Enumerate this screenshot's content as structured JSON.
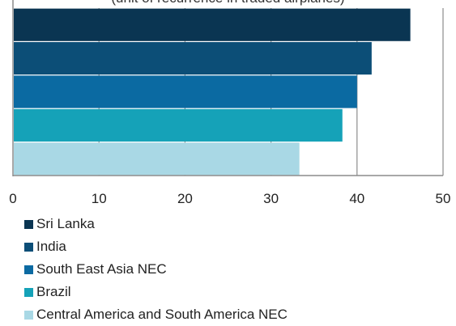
{
  "chart_data": {
    "type": "bar",
    "orientation": "horizontal",
    "title": "",
    "subtitle": "(unit of recurrence in traded airplanes)",
    "xlabel": "",
    "ylabel": "",
    "xlim": [
      0,
      50
    ],
    "xticks": [
      "0",
      "10",
      "20",
      "30",
      "40",
      "50"
    ],
    "grid": true,
    "legend_position": "bottom-left",
    "series": [
      {
        "name": "Sri Lanka",
        "value": 46.2,
        "color": "#0a3552"
      },
      {
        "name": "India",
        "value": 41.7,
        "color": "#0c4e77"
      },
      {
        "name": "South East Asia NEC",
        "value": 40.0,
        "color": "#0b6aa2"
      },
      {
        "name": "Brazil",
        "value": 38.3,
        "color": "#15a2b8"
      },
      {
        "name": "Central America and South America NEC",
        "value": 33.3,
        "color": "#a9d8e5"
      }
    ]
  }
}
